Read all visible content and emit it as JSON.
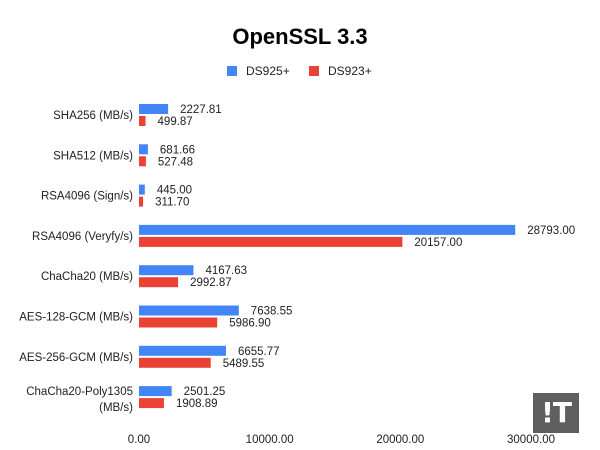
{
  "chart_data": {
    "type": "bar",
    "orientation": "horizontal",
    "title": "OpenSSL 3.3",
    "categories": [
      "SHA256 (MB/s)",
      "SHA512 (MB/s)",
      "RSA4096 (Sign/s)",
      "RSA4096 (Veryfy/s)",
      "ChaCha20 (MB/s)",
      "AES-128-GCM (MB/s)",
      "AES-256-GCM (MB/s)",
      "ChaCha20-Poly1305 (MB/s)"
    ],
    "series": [
      {
        "name": "DS925+",
        "color": "#4285F4",
        "values": [
          2227.81,
          681.66,
          445.0,
          28793.0,
          4167.63,
          7638.55,
          6655.77,
          2501.25
        ],
        "labels": [
          "2227.81",
          "681.66",
          "445.00",
          "28793.00",
          "4167.63",
          "7638.55",
          "6655.77",
          "2501.25"
        ]
      },
      {
        "name": "DS923+",
        "color": "#EA4335",
        "values": [
          499.87,
          527.48,
          311.7,
          20157.0,
          2992.87,
          5986.9,
          5489.55,
          1908.89
        ],
        "labels": [
          "499.87",
          "527.48",
          "311.70",
          "20157.00",
          "2992.87",
          "5986.90",
          "5489.55",
          "1908.89"
        ]
      }
    ],
    "xlim": [
      0,
      30000
    ],
    "xticks": [
      "0.00",
      "10000.00",
      "20000.00",
      "30000.00"
    ],
    "xtick_values": [
      0,
      10000,
      20000,
      30000
    ],
    "legend_position": "top",
    "grid": false,
    "xlabel": "",
    "ylabel": ""
  },
  "watermark": {
    "text": "!T",
    "color": "#5f5f5f"
  }
}
